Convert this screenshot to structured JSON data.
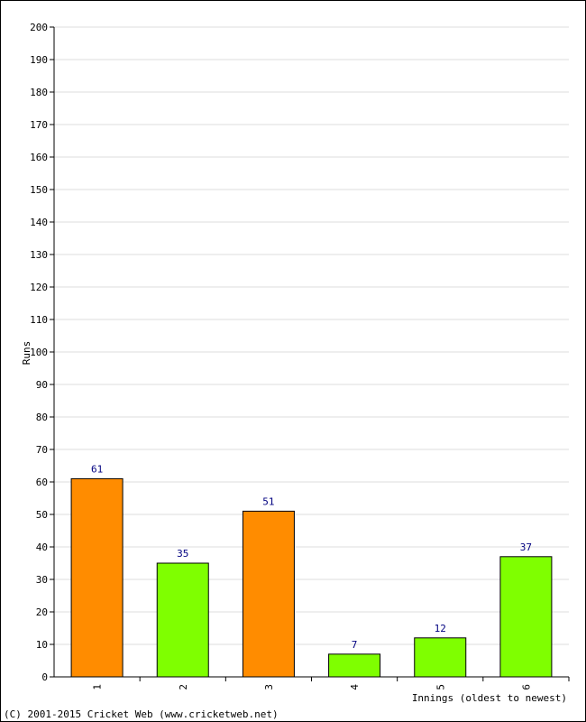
{
  "chart_data": {
    "type": "bar",
    "ylabel": "Runs",
    "xlabel": "Innings (oldest to newest)",
    "ylim": [
      0,
      200
    ],
    "ytick_step": 10,
    "categories": [
      "1",
      "2",
      "3",
      "4",
      "5",
      "6"
    ],
    "values": [
      61,
      35,
      51,
      7,
      12,
      37
    ],
    "colors": [
      "#ff8c00",
      "#7fff00",
      "#ff8c00",
      "#7fff00",
      "#7fff00",
      "#7fff00"
    ],
    "grid": true,
    "value_labels": true
  },
  "footer": {
    "copyright": "(C) 2001-2015 Cricket Web (www.cricketweb.net)"
  }
}
